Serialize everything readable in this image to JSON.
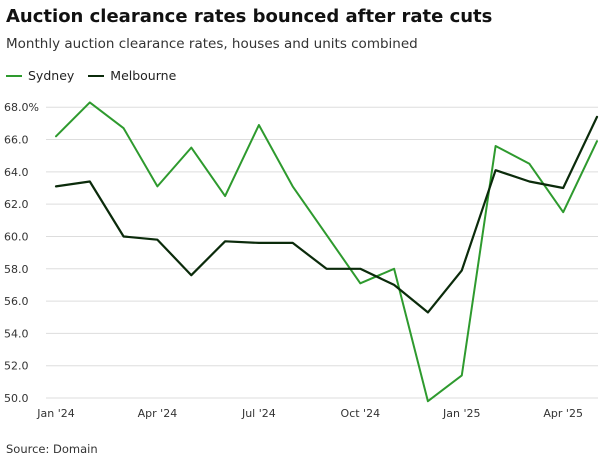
{
  "colors": {
    "sydney": "#2e9a2e",
    "melbourne": "#0b2b0b",
    "grid": "#dddddd"
  },
  "chart_data": {
    "type": "line",
    "title": "Auction clearance rates bounced after rate cuts",
    "subtitle": "Monthly auction clearance rates, houses and units combined",
    "source": "Source: Domain",
    "x": [
      "2024-01",
      "2024-02",
      "2024-03",
      "2024-04",
      "2024-05",
      "2024-06",
      "2024-07",
      "2024-08",
      "2024-09",
      "2024-10",
      "2024-11",
      "2024-12",
      "2025-01",
      "2025-02",
      "2025-03",
      "2025-04",
      "2025-05"
    ],
    "x_tick_labels": [
      {
        "x": "2024-01",
        "label": "Jan '24"
      },
      {
        "x": "2024-04",
        "label": "Apr '24"
      },
      {
        "x": "2024-07",
        "label": "Jul '24"
      },
      {
        "x": "2024-10",
        "label": "Oct '24"
      },
      {
        "x": "2025-01",
        "label": "Jan '25"
      },
      {
        "x": "2025-04",
        "label": "Apr '25"
      }
    ],
    "y_tick_labels": [
      {
        "value": 68,
        "label": "68.0%"
      },
      {
        "value": 66,
        "label": "66.0"
      },
      {
        "value": 64,
        "label": "64.0"
      },
      {
        "value": 62,
        "label": "62.0"
      },
      {
        "value": 60,
        "label": "60.0"
      },
      {
        "value": 58,
        "label": "58.0"
      },
      {
        "value": 56,
        "label": "56.0"
      },
      {
        "value": 54,
        "label": "54.0"
      },
      {
        "value": 52,
        "label": "52.0"
      },
      {
        "value": 50,
        "label": "50.0"
      }
    ],
    "ylim": [
      50,
      68.2
    ],
    "grid": "horizontal",
    "legend_position": "top-left",
    "series": [
      {
        "name": "Sydney",
        "color": "#2e9a2e",
        "values": [
          66.2,
          68.3,
          66.7,
          63.1,
          65.5,
          62.5,
          66.9,
          63.1,
          60.1,
          57.1,
          58.0,
          49.8,
          51.4,
          65.6,
          64.5,
          61.5,
          65.9
        ]
      },
      {
        "name": "Melbourne",
        "color": "#0b2b0b",
        "values": [
          63.1,
          63.4,
          60.0,
          59.8,
          57.6,
          59.7,
          59.6,
          59.6,
          58.0,
          58.0,
          57.0,
          55.3,
          57.9,
          64.1,
          63.4,
          63.0,
          67.4
        ]
      }
    ]
  }
}
